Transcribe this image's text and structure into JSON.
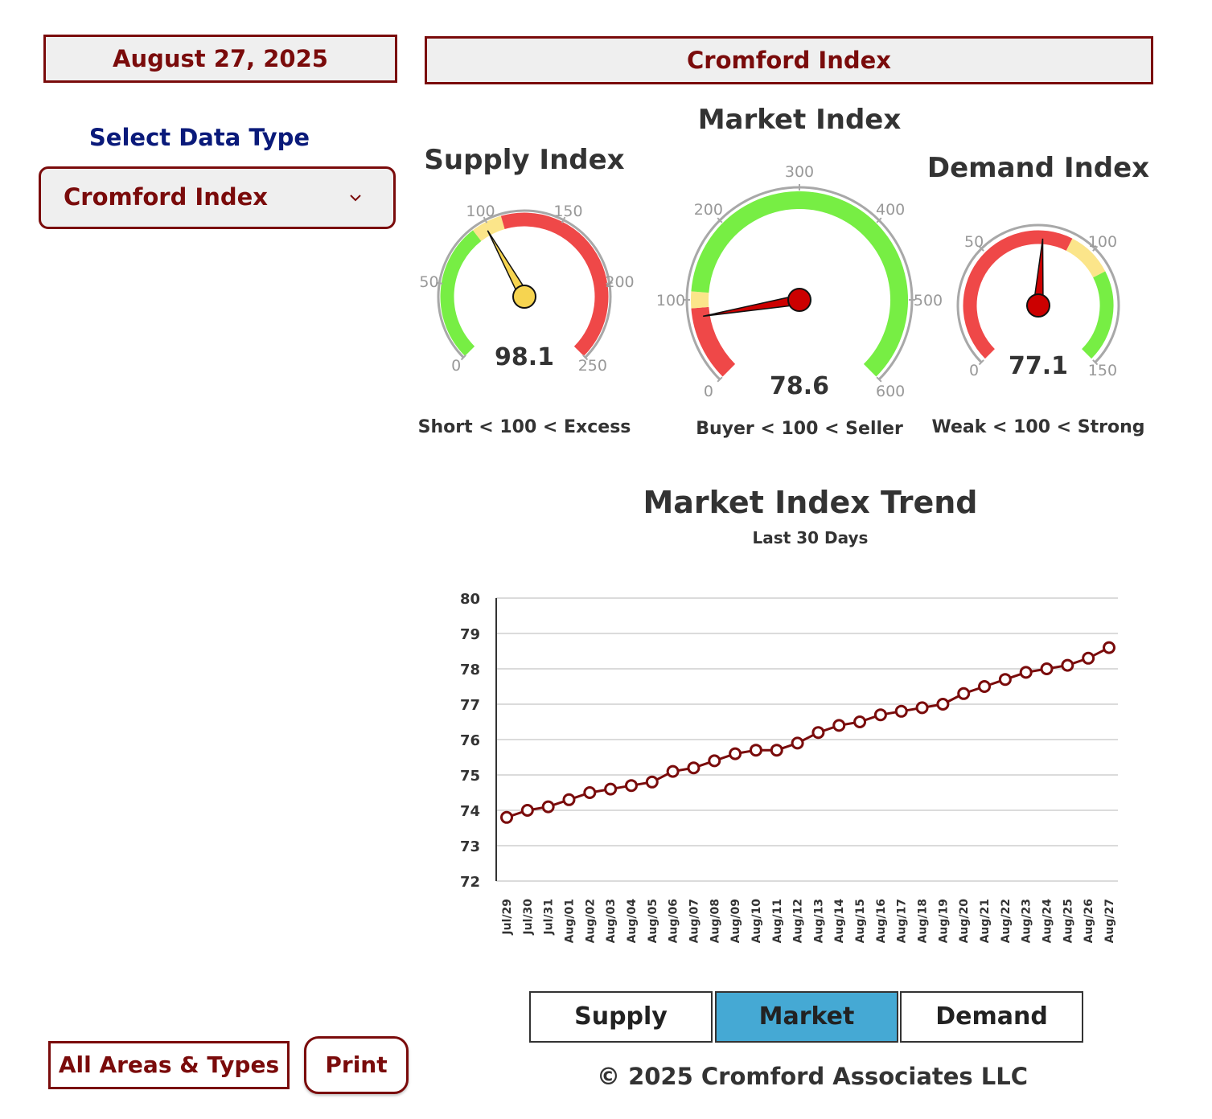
{
  "header": {
    "date": "August 27, 2025",
    "title": "Cromford Index"
  },
  "sidebar": {
    "select_label": "Select Data Type",
    "select_value": "Cromford Index",
    "select_icon": "chevron-down-icon",
    "all_areas_label": "All Areas & Types",
    "print_label": "Print"
  },
  "gauges": {
    "supply": {
      "title": "Supply Index",
      "value": "98.1",
      "value_num": 98.1,
      "min": 0,
      "max": 250,
      "ticks": [
        "0",
        "50",
        "100",
        "150",
        "200",
        "250"
      ],
      "bands": [
        {
          "from": 0,
          "to": 90,
          "color": "#77ee44"
        },
        {
          "from": 90,
          "to": 110,
          "color": "#fbe58a"
        },
        {
          "from": 110,
          "to": 250,
          "color": "#ef4848"
        }
      ],
      "needle_color": "#f6d450",
      "caption": "Short < 100 < Excess"
    },
    "market": {
      "title": "Market Index",
      "value": "78.6",
      "value_num": 78.6,
      "min": 0,
      "max": 600,
      "ticks": [
        "0",
        "100",
        "200",
        "300",
        "400",
        "500",
        "600"
      ],
      "bands": [
        {
          "from": 0,
          "to": 90,
          "color": "#ef4848"
        },
        {
          "from": 90,
          "to": 110,
          "color": "#fbe58a"
        },
        {
          "from": 110,
          "to": 600,
          "color": "#77ee44"
        }
      ],
      "needle_color": "#cc0000",
      "caption": "Buyer < 100 < Seller"
    },
    "demand": {
      "title": "Demand Index",
      "value": "77.1",
      "value_num": 77.1,
      "min": 0,
      "max": 150,
      "ticks": [
        "0",
        "50",
        "100",
        "150"
      ],
      "bands": [
        {
          "from": 0,
          "to": 90,
          "color": "#ef4848"
        },
        {
          "from": 90,
          "to": 110,
          "color": "#fbe58a"
        },
        {
          "from": 110,
          "to": 150,
          "color": "#77ee44"
        }
      ],
      "needle_color": "#cc0000",
      "caption": "Weak < 100 < Strong"
    }
  },
  "trend": {
    "title": "Market Index Trend",
    "subtitle": "Last 30 Days"
  },
  "chart_data": {
    "type": "line",
    "title": "Market Index Trend",
    "subtitle": "Last 30 Days",
    "x": [
      "Jul/29",
      "Jul/30",
      "Jul/31",
      "Aug/01",
      "Aug/02",
      "Aug/03",
      "Aug/04",
      "Aug/05",
      "Aug/06",
      "Aug/07",
      "Aug/08",
      "Aug/09",
      "Aug/10",
      "Aug/11",
      "Aug/12",
      "Aug/13",
      "Aug/14",
      "Aug/15",
      "Aug/16",
      "Aug/17",
      "Aug/18",
      "Aug/19",
      "Aug/20",
      "Aug/21",
      "Aug/22",
      "Aug/23",
      "Aug/24",
      "Aug/25",
      "Aug/26",
      "Aug/27"
    ],
    "series": [
      {
        "values": [
          73.8,
          74.0,
          74.1,
          74.3,
          74.5,
          74.6,
          74.7,
          74.8,
          75.1,
          75.2,
          75.4,
          75.6,
          75.7,
          75.7,
          75.9,
          76.2,
          76.4,
          76.5,
          76.7,
          76.8,
          76.9,
          77.0,
          77.3,
          77.5,
          77.7,
          77.9,
          78.0,
          78.1,
          78.3,
          78.6
        ],
        "color": "#7a0b0b"
      }
    ],
    "y_ticks": [
      "72",
      "73",
      "74",
      "75",
      "76",
      "77",
      "78",
      "79",
      "80"
    ],
    "ylim": [
      72,
      80
    ],
    "grid": true,
    "legend": "none"
  },
  "tabs": [
    {
      "label": "Supply",
      "active": false
    },
    {
      "label": "Market",
      "active": true
    },
    {
      "label": "Demand",
      "active": false
    }
  ],
  "footer": {
    "copyright": "© 2025 Cromford Associates LLC"
  }
}
